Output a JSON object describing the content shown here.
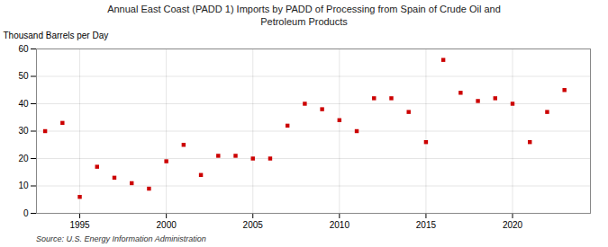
{
  "chart_data": {
    "type": "scatter",
    "title": "Annual East Coast (PADD 1) Imports by PADD of Processing from Spain of Crude Oil and\nPetroleum Products",
    "ylabel": "Thousand Barrels per Day",
    "source": "Source: U.S. Energy Information Administration",
    "x": [
      1993,
      1994,
      1995,
      1996,
      1997,
      1998,
      1999,
      2000,
      2001,
      2002,
      2003,
      2004,
      2005,
      2006,
      2007,
      2008,
      2009,
      2010,
      2011,
      2012,
      2013,
      2014,
      2015,
      2016,
      2017,
      2018,
      2019,
      2020,
      2021,
      2022,
      2023
    ],
    "values": [
      30,
      33,
      6,
      17,
      13,
      11,
      9,
      19,
      25,
      14,
      21,
      21,
      20,
      20,
      32,
      40,
      38,
      34,
      30,
      42,
      42,
      37,
      26,
      56,
      44,
      41,
      42,
      40,
      26,
      37,
      45
    ],
    "color": "#cc0000",
    "marker": "square",
    "ylim": [
      0,
      60
    ],
    "yticks": [
      0,
      10,
      20,
      30,
      40,
      50,
      60
    ],
    "xlim": [
      1992.5,
      2024.5
    ],
    "xticks": [
      1995,
      2000,
      2005,
      2010,
      2015,
      2020
    ],
    "grid": true
  }
}
